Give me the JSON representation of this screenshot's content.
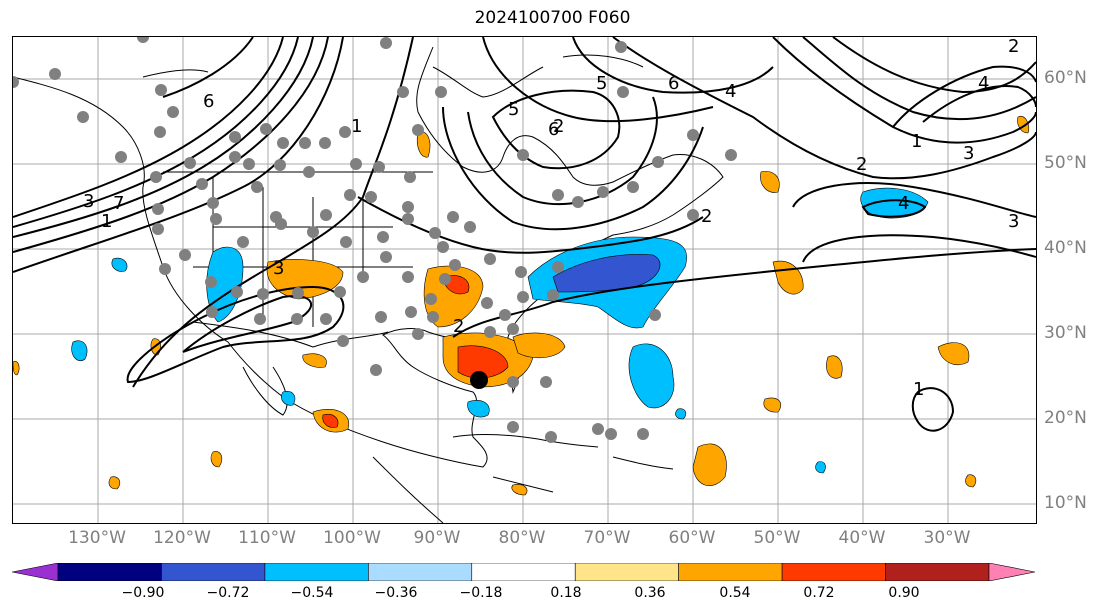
{
  "title": "2024100700 F060",
  "lon_labels": [
    "130°W",
    "120°W",
    "110°W",
    "100°W",
    "90°W",
    "80°W",
    "70°W",
    "60°W",
    "50°W",
    "40°W",
    "30°W"
  ],
  "lat_labels": [
    "60°N",
    "50°N",
    "40°N",
    "30°N",
    "20°N",
    "10°N"
  ],
  "contour_labels": [
    "6",
    "7",
    "1",
    "6",
    "5",
    "4",
    "1",
    "2",
    "3",
    "4",
    "3",
    "2",
    "3",
    "4",
    "5",
    "6",
    "1",
    "2",
    "3",
    "1",
    "2",
    "2"
  ],
  "colorbar": {
    "ticks": [
      "−0.90",
      "−0.72",
      "−0.54",
      "−0.36",
      "−0.18",
      "0.18",
      "0.36",
      "0.54",
      "0.72",
      "0.90"
    ],
    "colors": [
      "#9b30d2",
      "#000080",
      "#3355d0",
      "#00bfff",
      "#aadcff",
      "#ffffff",
      "#ffe48a",
      "#ffa500",
      "#ff3a00",
      "#b0211e",
      "#ff80b4"
    ]
  },
  "marker": "storm-center-dot"
}
